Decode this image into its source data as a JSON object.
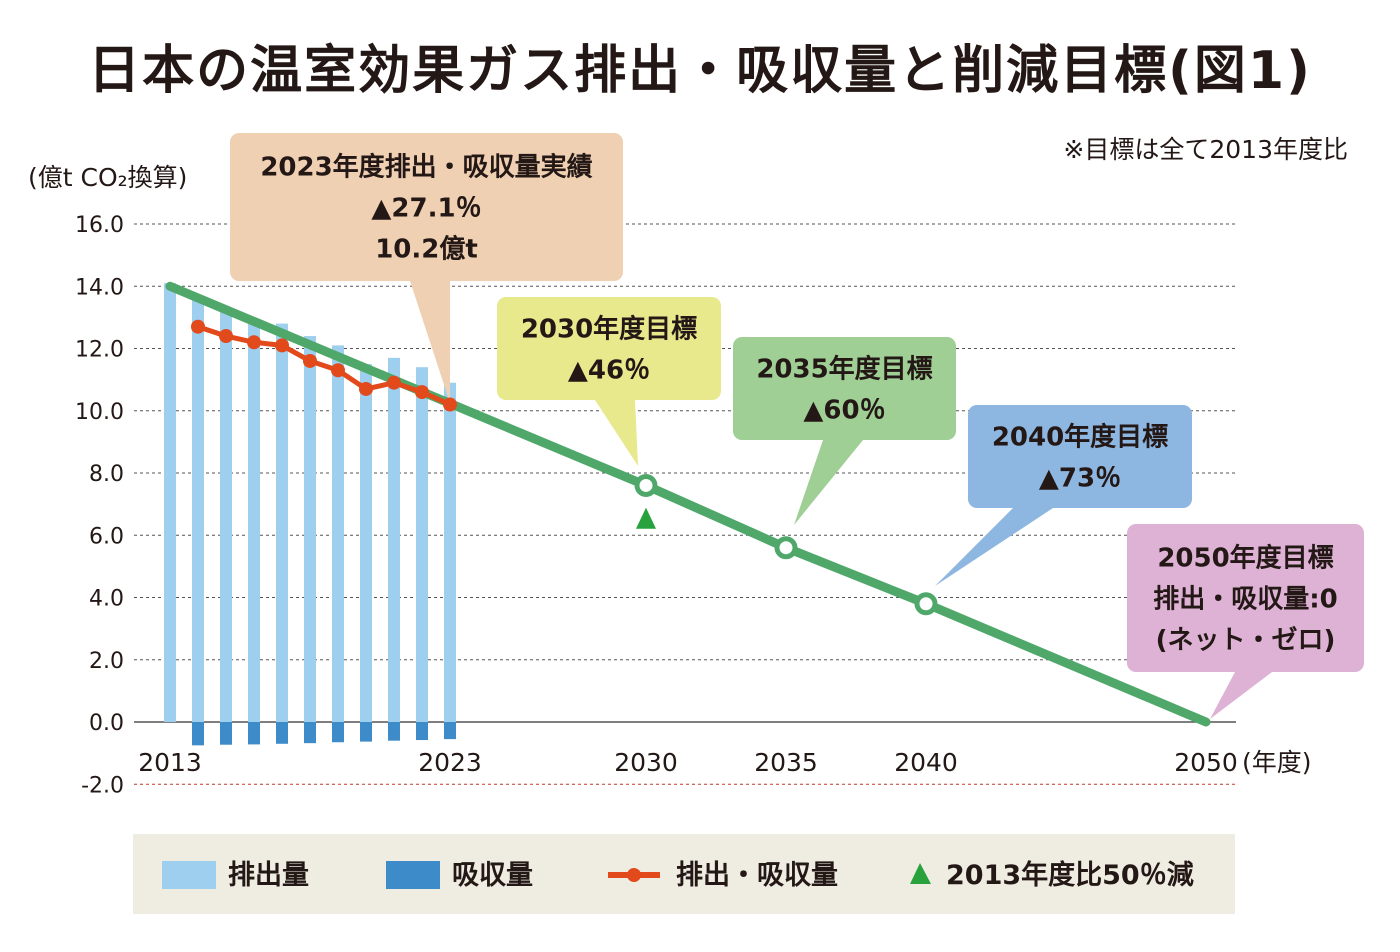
{
  "title": "日本の温室効果ガス排出・吸収量と削減目標(図1)",
  "note": "※目標は全て2013年度比",
  "colors": {
    "emission": "#9fcfee",
    "absorption": "#3d8cc9",
    "net": "#e2491b",
    "target_line": "#4fa86a",
    "triangle": "#27a23c",
    "negative_label": "#c0392b",
    "callout_2023": "#f0d0b3",
    "callout_2030": "#e8e98c",
    "callout_2035": "#9fcf95",
    "callout_2040": "#8db6e1",
    "callout_2050": "#ddb2d5",
    "legend_bg": "#efece2"
  },
  "chart_data": {
    "type": "bar",
    "y_unit_label": "(億t CO₂換算)",
    "x_unit_label": "(年度)",
    "ylim": [
      -2.0,
      16.0
    ],
    "xlim": [
      2013,
      2050
    ],
    "y_ticks": [
      "16.0",
      "14.0",
      "12.0",
      "10.0",
      "8.0",
      "6.0",
      "4.0",
      "2.0",
      "0.0",
      "-2.0"
    ],
    "x_ticks": [
      "2013",
      "2023",
      "2030",
      "2035",
      "2040",
      "2050"
    ],
    "grid": "dashed horizontal",
    "series": [
      {
        "name": "排出量",
        "type": "bar",
        "x": [
          2013,
          2014,
          2015,
          2016,
          2017,
          2018,
          2019,
          2020,
          2021,
          2022,
          2023
        ],
        "values": [
          14.1,
          13.6,
          13.2,
          12.9,
          12.8,
          12.4,
          12.1,
          11.5,
          11.7,
          11.4,
          10.9
        ]
      },
      {
        "name": "吸収量",
        "type": "bar",
        "x": [
          2014,
          2015,
          2016,
          2017,
          2018,
          2019,
          2020,
          2021,
          2022,
          2023
        ],
        "values": [
          -0.75,
          -0.73,
          -0.72,
          -0.7,
          -0.68,
          -0.65,
          -0.63,
          -0.6,
          -0.58,
          -0.55
        ]
      },
      {
        "name": "排出・吸収量",
        "type": "line",
        "x": [
          2014,
          2015,
          2016,
          2017,
          2018,
          2019,
          2020,
          2021,
          2022,
          2023
        ],
        "values": [
          12.7,
          12.4,
          12.2,
          12.1,
          11.6,
          11.3,
          10.7,
          10.9,
          10.6,
          10.2
        ]
      },
      {
        "name": "target_path",
        "type": "line",
        "x": [
          2013,
          2030,
          2035,
          2040,
          2050
        ],
        "values": [
          14.0,
          7.6,
          5.6,
          3.8,
          0.0
        ]
      },
      {
        "name": "2013年度比50％減",
        "type": "scatter",
        "x": [
          2030
        ],
        "values": [
          6.5
        ]
      }
    ],
    "annotations": [
      {
        "lines": [
          "2023年度排出・吸収量実績",
          "▲27.1％",
          "10.2億t"
        ],
        "x": 2023,
        "y": 10.2
      },
      {
        "lines": [
          "2030年度目標",
          "▲46％"
        ],
        "x": 2030,
        "y": 7.6
      },
      {
        "lines": [
          "2035年度目標",
          "▲60％"
        ],
        "x": 2035,
        "y": 5.6
      },
      {
        "lines": [
          "2040年度目標",
          "▲73％"
        ],
        "x": 2040,
        "y": 3.8
      },
      {
        "lines": [
          "2050年度目標",
          "排出・吸収量:0",
          "(ネット・ゼロ)"
        ],
        "x": 2050,
        "y": 0.0
      }
    ],
    "legend": [
      {
        "label": "排出量",
        "marker": "bar-light"
      },
      {
        "label": "吸収量",
        "marker": "bar-dark"
      },
      {
        "label": "排出・吸収量",
        "marker": "line-dot"
      },
      {
        "label": "2013年度比50％減",
        "marker": "triangle"
      }
    ]
  }
}
